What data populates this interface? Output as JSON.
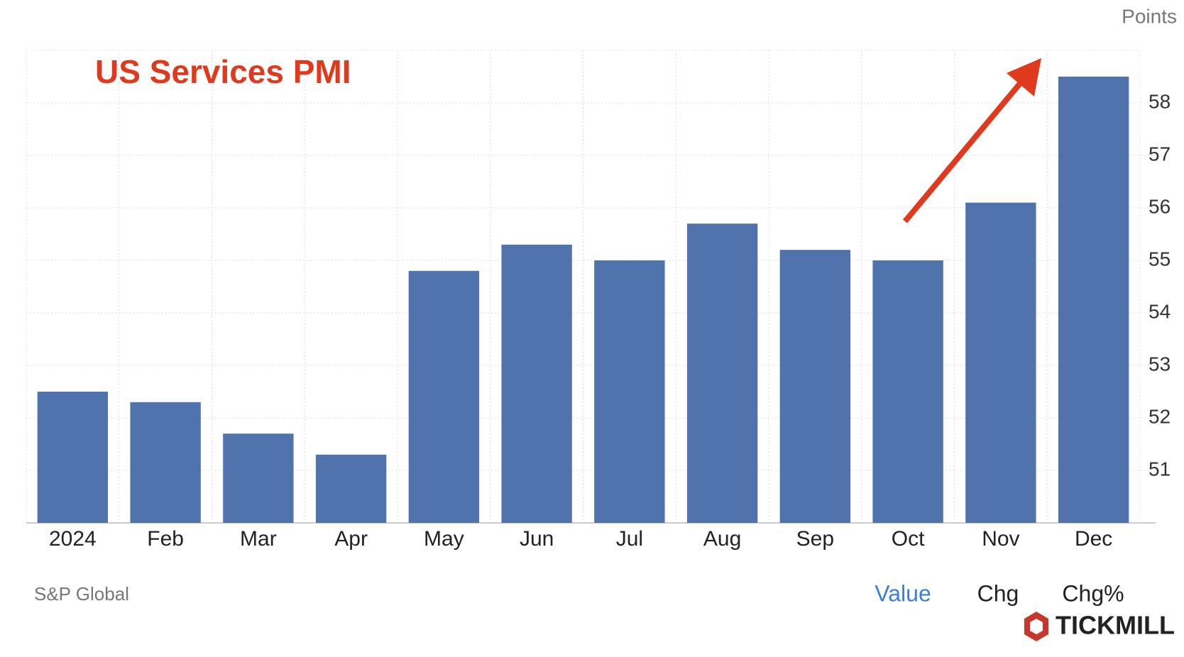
{
  "chart_data": {
    "type": "bar",
    "title": "US Services PMI",
    "y_axis_label": "Points",
    "categories": [
      "2024",
      "Feb",
      "Mar",
      "Apr",
      "May",
      "Jun",
      "Jul",
      "Aug",
      "Sep",
      "Oct",
      "Nov",
      "Dec"
    ],
    "values": [
      52.5,
      52.3,
      51.7,
      51.3,
      54.8,
      55.3,
      55.0,
      55.7,
      55.2,
      55.0,
      56.1,
      58.5
    ],
    "color": "#5072ad",
    "ylim": [
      50,
      59
    ],
    "yticks": [
      51,
      52,
      53,
      54,
      55,
      56,
      57,
      58
    ],
    "grid": true,
    "source": "S&P Global",
    "tabs": [
      "Value",
      "Chg",
      "Chg%"
    ],
    "brand": "TICKMILL"
  }
}
